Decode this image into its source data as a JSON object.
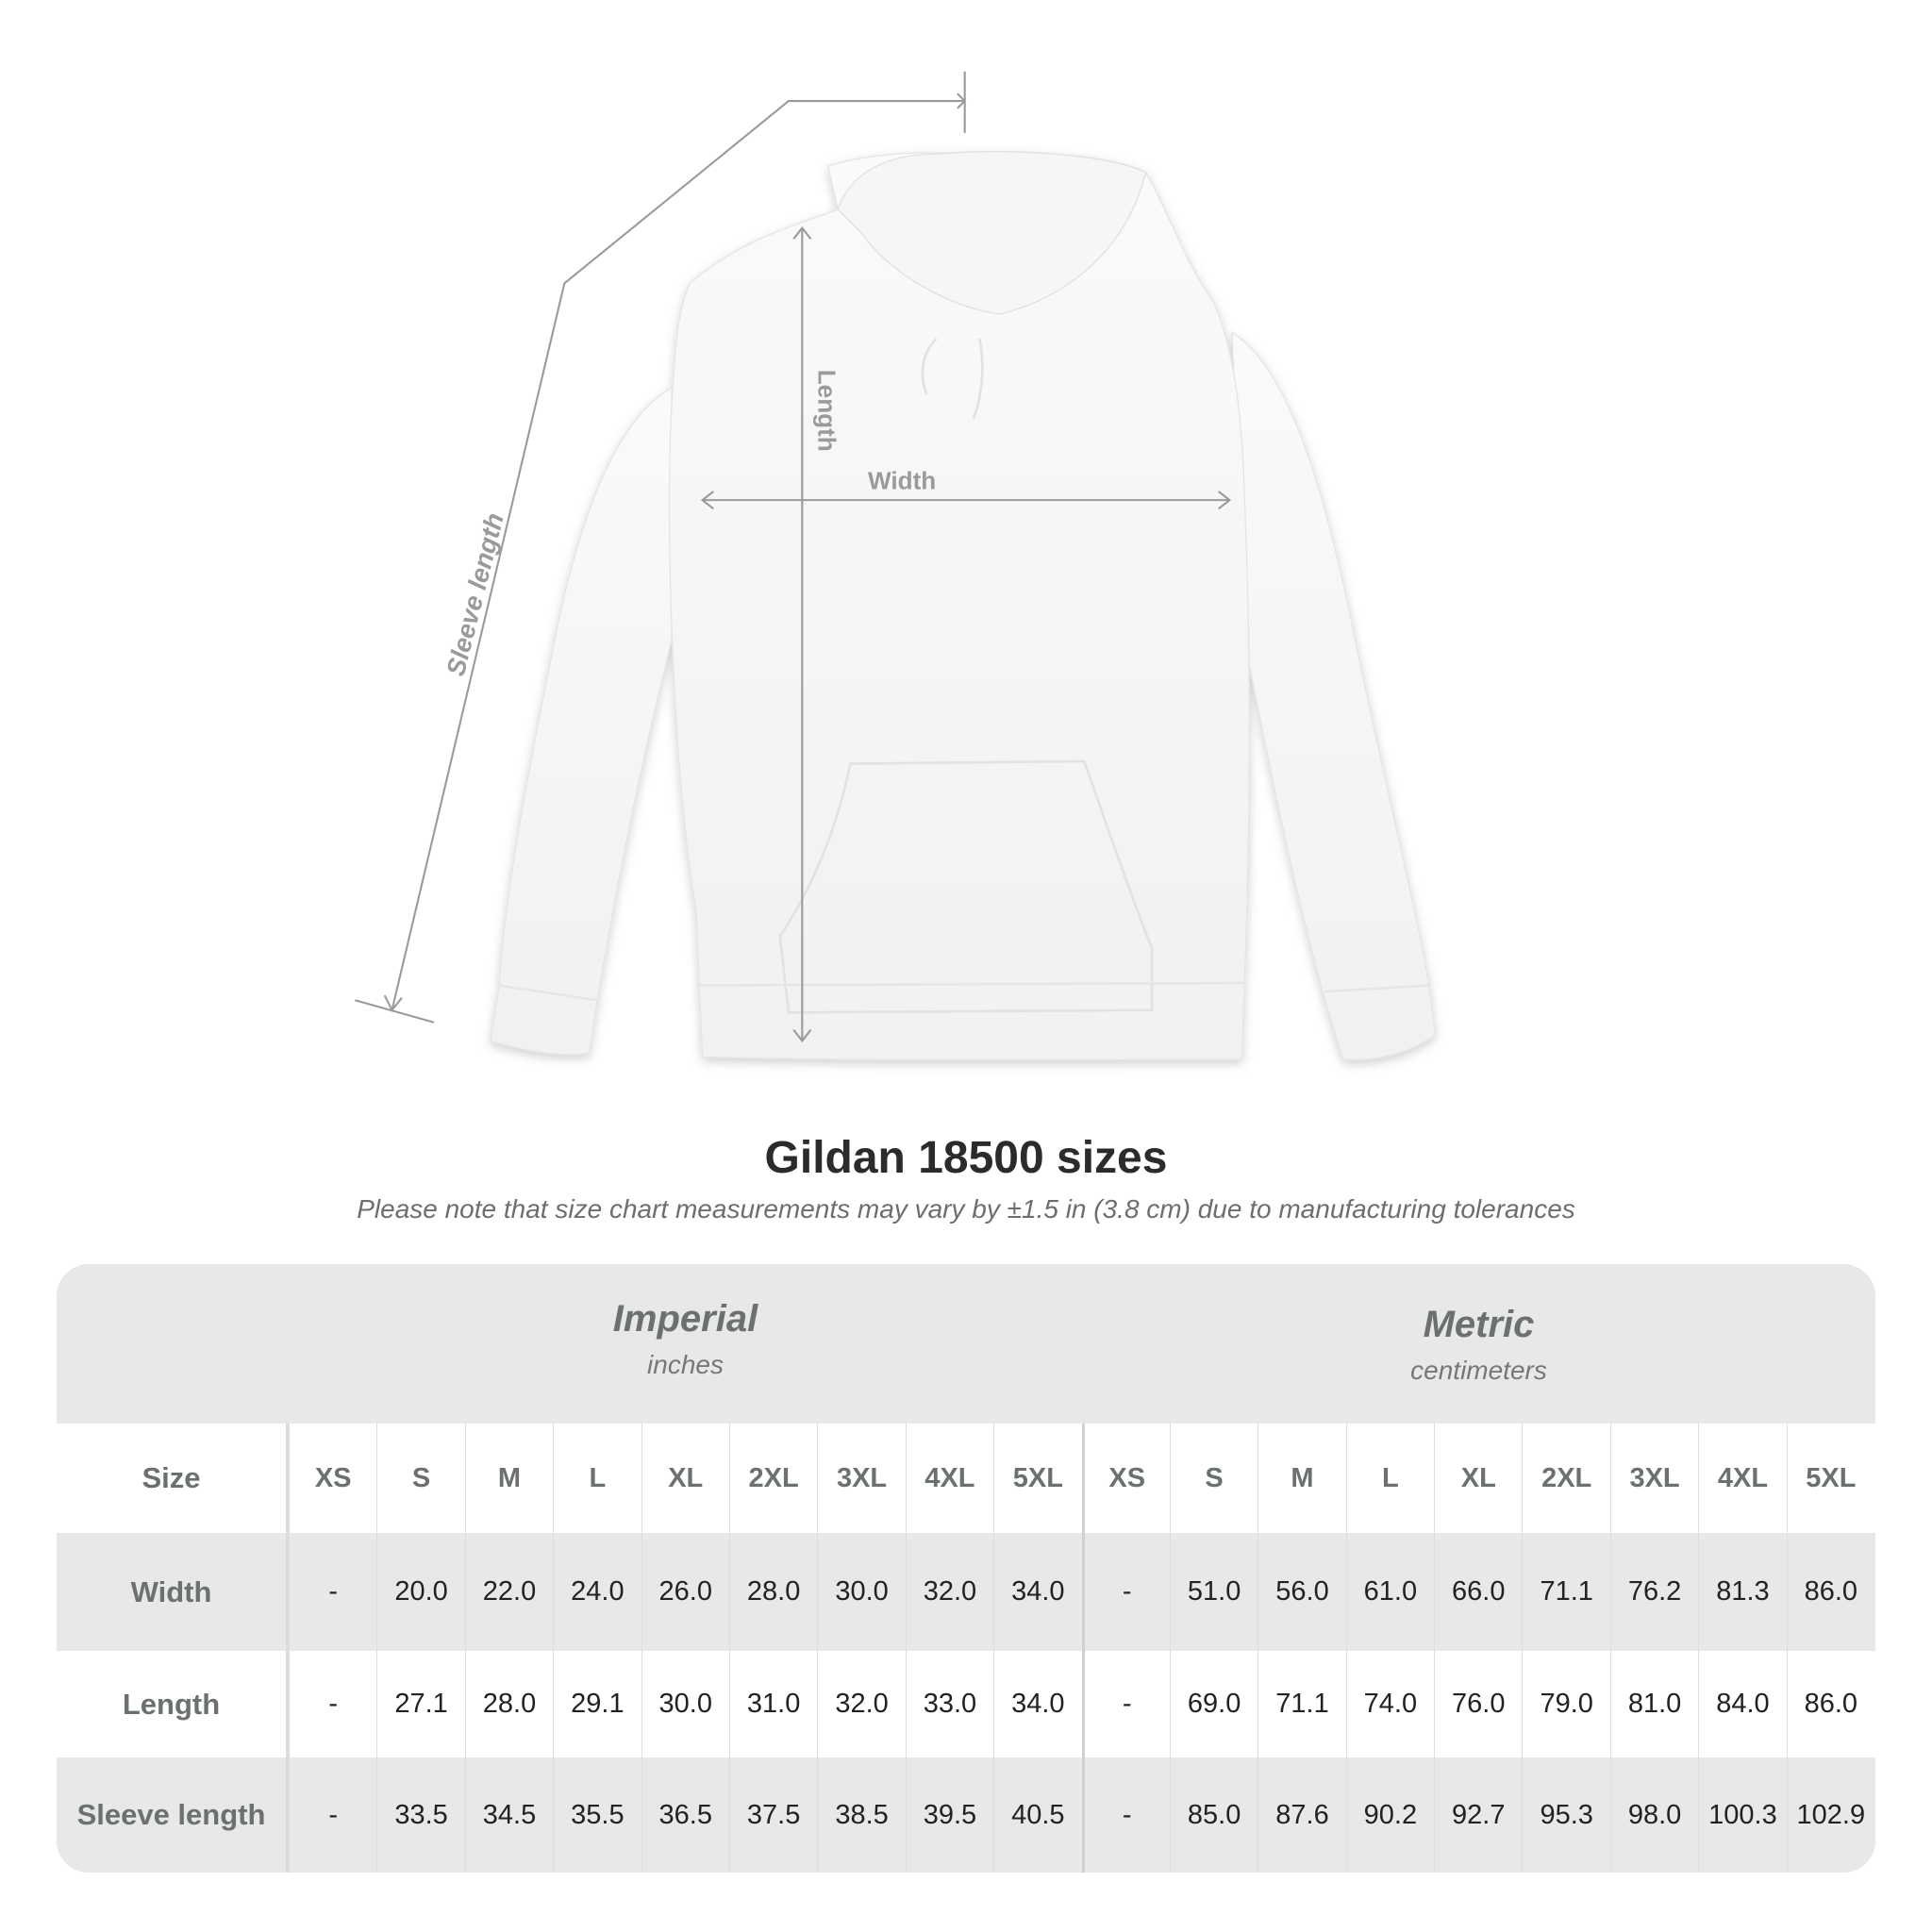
{
  "diagram": {
    "labels": {
      "length": "Length",
      "width": "Width",
      "sleeve_length": "Sleeve length"
    },
    "line_color": "#9a9a9a"
  },
  "title": "Gildan 18500 sizes",
  "subtitle": "Please note that size chart measurements may vary by ±1.5 in (3.8 cm) due to manufacturing tolerances",
  "table": {
    "imperial": {
      "name": "Imperial",
      "unit": "inches"
    },
    "metric": {
      "name": "Metric",
      "unit": "centimeters"
    },
    "size_label": "Size",
    "sizes": [
      "XS",
      "S",
      "M",
      "L",
      "XL",
      "2XL",
      "3XL",
      "4XL",
      "5XL"
    ],
    "rows": [
      {
        "label": "Width",
        "imperial": [
          "-",
          "20.0",
          "22.0",
          "24.0",
          "26.0",
          "28.0",
          "30.0",
          "32.0",
          "34.0"
        ],
        "metric": [
          "-",
          "51.0",
          "56.0",
          "61.0",
          "66.0",
          "71.1",
          "76.2",
          "81.3",
          "86.0"
        ]
      },
      {
        "label": "Length",
        "imperial": [
          "-",
          "27.1",
          "28.0",
          "29.1",
          "30.0",
          "31.0",
          "32.0",
          "33.0",
          "34.0"
        ],
        "metric": [
          "-",
          "69.0",
          "71.1",
          "74.0",
          "76.0",
          "79.0",
          "81.0",
          "84.0",
          "86.0"
        ]
      },
      {
        "label": "Sleeve length",
        "imperial": [
          "-",
          "33.5",
          "34.5",
          "35.5",
          "36.5",
          "37.5",
          "38.5",
          "39.5",
          "40.5"
        ],
        "metric": [
          "-",
          "85.0",
          "87.6",
          "90.2",
          "92.7",
          "95.3",
          "98.0",
          "100.3",
          "102.9"
        ]
      }
    ]
  }
}
